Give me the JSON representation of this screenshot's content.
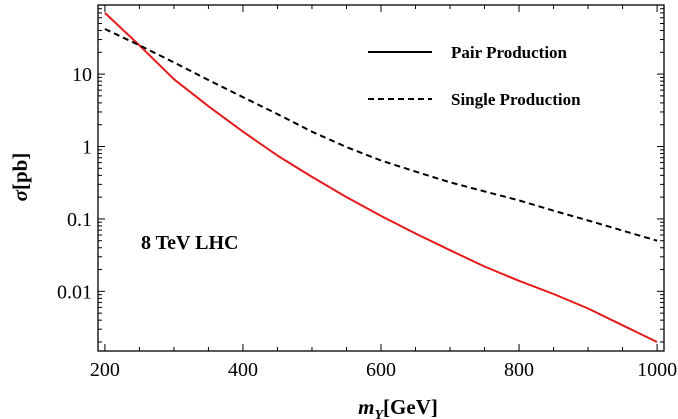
{
  "chart_data": {
    "type": "line",
    "y_scale": "log",
    "xlim": [
      190,
      1010
    ],
    "ylim": [
      0.0015,
      90
    ],
    "x_ticks": [
      "200",
      "400",
      "600",
      "800",
      "1000"
    ],
    "x_tick_values": [
      200,
      400,
      600,
      800,
      1000
    ],
    "y_ticks": [
      "0.01",
      "0.1",
      "1",
      "10"
    ],
    "y_tick_values": [
      0.01,
      0.1,
      1,
      10
    ],
    "xlabel": {
      "main": "m",
      "sub": "Y",
      "unit": "[GeV]"
    },
    "ylabel": {
      "main": "σ",
      "unit": "[pb]"
    },
    "annotation": "8 TeV LHC",
    "legend_position": "top-right",
    "grid": false,
    "series": [
      {
        "name": "Pair Production",
        "color": "#e41a1c",
        "legend_color": "#000000",
        "line_style": "solid",
        "x": [
          200,
          250,
          300,
          350,
          400,
          450,
          500,
          550,
          600,
          650,
          700,
          750,
          800,
          850,
          900,
          950,
          1000
        ],
        "y": [
          70,
          25,
          8.5,
          3.6,
          1.6,
          0.75,
          0.38,
          0.2,
          0.11,
          0.063,
          0.037,
          0.022,
          0.014,
          0.0092,
          0.0058,
          0.0034,
          0.002
        ]
      },
      {
        "name": "Single Production",
        "color": "#000000",
        "line_style": "dashed",
        "x": [
          200,
          250,
          300,
          350,
          400,
          450,
          500,
          550,
          600,
          650,
          700,
          750,
          800,
          850,
          900,
          950,
          1000
        ],
        "y": [
          42,
          25,
          14.5,
          8.3,
          4.8,
          2.8,
          1.6,
          0.98,
          0.64,
          0.45,
          0.32,
          0.24,
          0.18,
          0.13,
          0.095,
          0.069,
          0.05
        ]
      }
    ]
  }
}
